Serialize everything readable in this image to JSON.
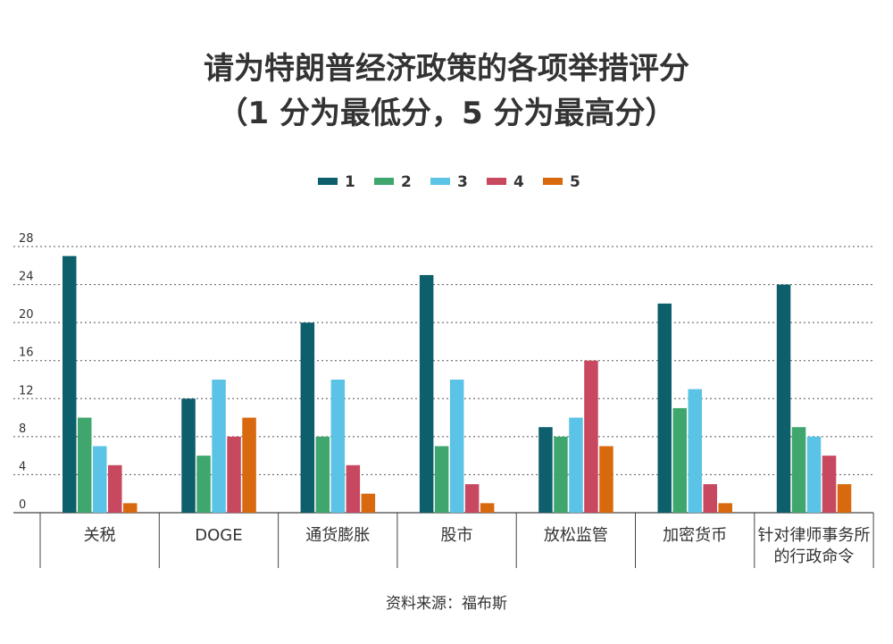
{
  "title_line1": "请为特朗普经济政策的各项举措评分",
  "title_line2": "（1 分为最低分，5 分为最高分）",
  "source": "资料来源：福布斯",
  "colors": [
    "#0d5f6b",
    "#3fa66e",
    "#5bc3e6",
    "#c8485f",
    "#d8690f"
  ],
  "chart_data": {
    "type": "bar",
    "categories": [
      "关税",
      "DOGE",
      "通货膨胀",
      "股市",
      "放松监管",
      "加密货币",
      "针对律师事务所的行政命令"
    ],
    "category_lines": [
      [
        "关税"
      ],
      [
        "DOGE"
      ],
      [
        "通货膨胀"
      ],
      [
        "股市"
      ],
      [
        "放松监管"
      ],
      [
        "加密货币"
      ],
      [
        "针对律师事务所",
        "的行政命令"
      ]
    ],
    "series": [
      {
        "name": "1",
        "values": [
          27,
          12,
          20,
          25,
          9,
          22,
          24
        ]
      },
      {
        "name": "2",
        "values": [
          10,
          6,
          8,
          7,
          8,
          11,
          9
        ]
      },
      {
        "name": "3",
        "values": [
          7,
          14,
          14,
          14,
          10,
          13,
          8
        ]
      },
      {
        "name": "4",
        "values": [
          5,
          8,
          5,
          3,
          16,
          3,
          6
        ]
      },
      {
        "name": "5",
        "values": [
          1,
          10,
          2,
          1,
          7,
          1,
          3
        ]
      }
    ],
    "yticks": [
      0,
      4,
      8,
      12,
      16,
      20,
      24,
      28
    ],
    "ylim": [
      0,
      28
    ],
    "legend_position": "top-center",
    "grid": true
  }
}
